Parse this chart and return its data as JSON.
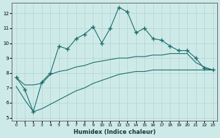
{
  "xlabel": "Humidex (Indice chaleur)",
  "xlim": [
    -0.5,
    23.5
  ],
  "ylim": [
    4.8,
    12.7
  ],
  "yticks": [
    5,
    6,
    7,
    8,
    9,
    10,
    11,
    12
  ],
  "xticks": [
    0,
    1,
    2,
    3,
    4,
    5,
    6,
    7,
    8,
    9,
    10,
    11,
    12,
    13,
    14,
    15,
    16,
    17,
    18,
    19,
    20,
    21,
    22,
    23
  ],
  "bg_color": "#ceeae8",
  "line_color": "#1a6b6b",
  "grid_color": "#aed4d2",
  "line1_x": [
    0,
    1,
    2,
    3,
    4,
    5,
    6,
    7,
    8,
    9,
    10,
    11,
    12,
    13,
    14,
    15,
    16,
    17,
    18,
    19,
    20,
    21,
    22,
    23
  ],
  "line1_y": [
    7.7,
    6.9,
    5.4,
    7.4,
    8.0,
    9.8,
    9.6,
    10.3,
    10.6,
    11.1,
    10.0,
    11.0,
    12.4,
    12.1,
    10.7,
    11.0,
    10.3,
    10.2,
    9.8,
    9.5,
    9.5,
    9.0,
    8.3,
    8.2
  ],
  "line2_x": [
    0,
    1,
    2,
    3,
    4,
    5,
    6,
    7,
    8,
    9,
    10,
    11,
    12,
    13,
    14,
    15,
    16,
    17,
    18,
    19,
    20,
    21,
    22,
    23
  ],
  "line2_y": [
    7.7,
    7.2,
    7.2,
    7.3,
    7.9,
    8.1,
    8.2,
    8.4,
    8.5,
    8.7,
    8.8,
    8.9,
    9.0,
    9.0,
    9.1,
    9.1,
    9.2,
    9.2,
    9.3,
    9.3,
    9.3,
    8.7,
    8.4,
    8.2
  ],
  "line3_x": [
    0,
    1,
    2,
    3,
    4,
    5,
    6,
    7,
    8,
    9,
    10,
    11,
    12,
    13,
    14,
    15,
    16,
    17,
    18,
    19,
    20,
    21,
    22,
    23
  ],
  "line3_y": [
    7.1,
    6.2,
    5.4,
    5.6,
    5.9,
    6.2,
    6.5,
    6.8,
    7.0,
    7.3,
    7.5,
    7.7,
    7.9,
    8.0,
    8.1,
    8.1,
    8.2,
    8.2,
    8.2,
    8.2,
    8.2,
    8.2,
    8.2,
    8.2
  ]
}
